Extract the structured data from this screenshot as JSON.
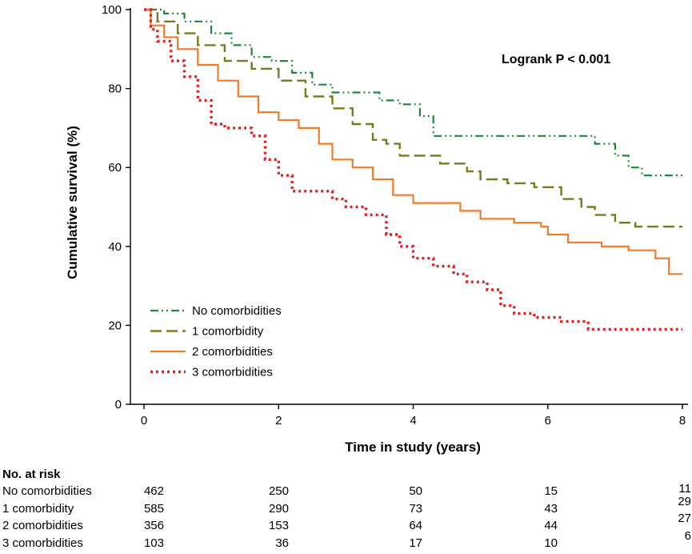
{
  "chart_data": {
    "type": "line",
    "title": "",
    "xlabel": "Time in study (years)",
    "ylabel": "Cumulative survival (%)",
    "xlim": [
      0,
      8
    ],
    "ylim": [
      0,
      100
    ],
    "xticks": [
      "0",
      "2",
      "4",
      "6",
      "8"
    ],
    "yticks": [
      "0",
      "20",
      "40",
      "60",
      "80",
      "100"
    ],
    "grid": false,
    "legend_position": "bottom-left",
    "annotation": "Logrank P < 0.001",
    "series": [
      {
        "name": "No comorbidities",
        "color": "#1b8a3a",
        "dash": "dash-dot-dot",
        "x": [
          0,
          0.3,
          0.6,
          1.0,
          1.3,
          1.6,
          1.9,
          2.2,
          2.5,
          2.8,
          3.2,
          3.5,
          3.8,
          4.1,
          4.3,
          4.8,
          5.5,
          6.0,
          6.3,
          6.7,
          7.0,
          7.2,
          7.4,
          8.0
        ],
        "y": [
          100,
          99,
          97,
          94,
          91,
          88,
          87,
          84,
          81,
          79,
          79,
          77,
          76,
          73,
          68,
          68,
          68,
          68,
          68,
          66,
          63,
          60,
          58,
          58
        ]
      },
      {
        "name": "1 comorbidity",
        "color": "#7a7a1a",
        "dash": "long-dash",
        "x": [
          0,
          0.2,
          0.5,
          0.8,
          1.2,
          1.6,
          2.0,
          2.4,
          2.8,
          3.1,
          3.4,
          3.6,
          3.8,
          4.1,
          4.4,
          4.8,
          5.0,
          5.4,
          5.8,
          6.2,
          6.5,
          6.7,
          7.0,
          7.3,
          8.0
        ],
        "y": [
          100,
          97,
          94,
          91,
          87,
          85,
          82,
          78,
          75,
          71,
          67,
          66,
          63,
          63,
          61,
          59,
          57,
          56,
          55,
          52,
          50,
          48,
          46,
          45,
          45
        ]
      },
      {
        "name": "2 comorbidities",
        "color": "#f07c2a",
        "dash": "solid",
        "x": [
          0,
          0.1,
          0.3,
          0.5,
          0.8,
          1.1,
          1.4,
          1.7,
          2.0,
          2.3,
          2.6,
          2.8,
          3.1,
          3.4,
          3.7,
          4.0,
          4.3,
          4.7,
          5.0,
          5.5,
          5.9,
          6.0,
          6.3,
          6.8,
          7.2,
          7.6,
          7.8,
          8.0
        ],
        "y": [
          100,
          96,
          93,
          90,
          86,
          82,
          78,
          74,
          72,
          70,
          66,
          62,
          60,
          57,
          53,
          51,
          51,
          49,
          47,
          46,
          45,
          43,
          41,
          40,
          39,
          37,
          33,
          33
        ]
      },
      {
        "name": "3 comorbidities",
        "color": "#e02020",
        "dash": "dotted",
        "x": [
          0,
          0.1,
          0.2,
          0.4,
          0.6,
          0.8,
          1.0,
          1.2,
          1.4,
          1.6,
          1.8,
          2.0,
          2.2,
          2.5,
          2.8,
          3.0,
          3.3,
          3.6,
          3.8,
          4.0,
          4.3,
          4.6,
          4.8,
          5.1,
          5.3,
          5.5,
          5.8,
          6.2,
          6.6,
          7.0,
          8.0
        ],
        "y": [
          100,
          95,
          92,
          87,
          83,
          77,
          71,
          70,
          70,
          68,
          62,
          58,
          54,
          54,
          52,
          50,
          48,
          43,
          40,
          37,
          35,
          33,
          31,
          29,
          25,
          23,
          22,
          21,
          19,
          19,
          19
        ]
      }
    ]
  },
  "risk_table": {
    "title": "No. at risk",
    "times": [
      "0",
      "2",
      "4",
      "6",
      "8"
    ],
    "rows": [
      {
        "label": "No comorbidities",
        "values": [
          "462",
          "250",
          "50",
          "15",
          "11"
        ]
      },
      {
        "label": "1 comorbidity",
        "values": [
          "585",
          "290",
          "73",
          "43",
          "29"
        ]
      },
      {
        "label": "2 comorbidities",
        "values": [
          "356",
          "153",
          "64",
          "44",
          "27"
        ]
      },
      {
        "label": "3 comorbidities",
        "values": [
          "103",
          "36",
          "17",
          "10",
          "6"
        ]
      }
    ]
  }
}
